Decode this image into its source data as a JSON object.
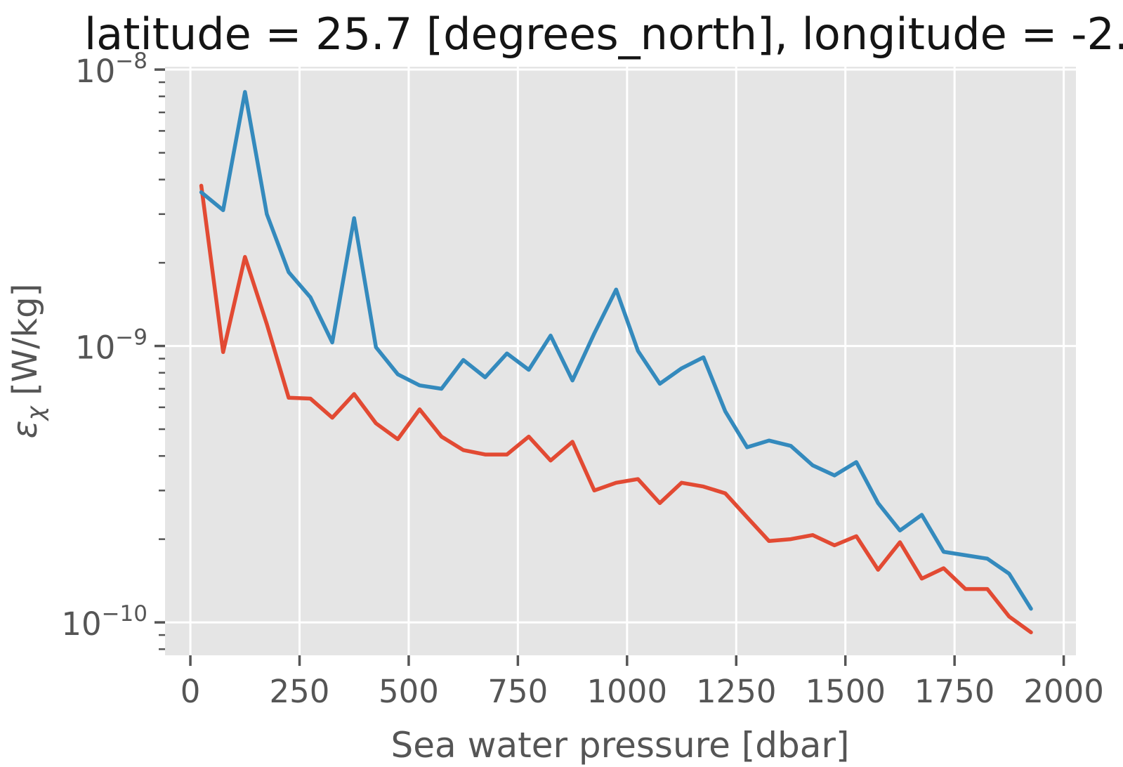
{
  "chart_data": {
    "type": "line",
    "title": "latitude = 25.7 [degrees_north], longitude = -2...",
    "xlabel": "Sea water pressure [dbar]",
    "ylabel": {
      "symbol": "ε",
      "subscript": "χ",
      "units": " [W/kg]"
    },
    "grid": true,
    "legend": "none",
    "plot_bg": "#e5e5e5",
    "grid_color": "#ffffff",
    "tick_color": "#555555",
    "label_color": "#555555",
    "title_color": "#141414",
    "xlim": [
      -58,
      2028
    ],
    "ylim": [
      7.6e-11,
      1.024e-08
    ],
    "x_ticks": [
      0,
      250,
      500,
      750,
      1000,
      1250,
      1500,
      1750,
      2000
    ],
    "y_ticks": [
      {
        "value": 1e-08,
        "base": "10",
        "exp": "−8"
      },
      {
        "value": 1e-09,
        "base": "10",
        "exp": "−9"
      },
      {
        "value": 1e-10,
        "base": "10",
        "exp": "−10"
      }
    ],
    "x": [
      25,
      75,
      125,
      175,
      225,
      275,
      325,
      375,
      425,
      475,
      525,
      575,
      625,
      675,
      725,
      775,
      825,
      875,
      925,
      975,
      1025,
      1075,
      1125,
      1175,
      1225,
      1275,
      1325,
      1375,
      1425,
      1475,
      1525,
      1575,
      1625,
      1675,
      1725,
      1775,
      1825,
      1875,
      1925
    ],
    "series": [
      {
        "name": "red-line",
        "color": "#E24A33",
        "values": [
          3.8e-09,
          9.5e-10,
          2.1e-09,
          1.2e-09,
          6.5e-10,
          6.45e-10,
          5.5e-10,
          6.7e-10,
          5.25e-10,
          4.6e-10,
          5.9e-10,
          4.7e-10,
          4.2e-10,
          4.05e-10,
          4.05e-10,
          4.7e-10,
          3.85e-10,
          4.5e-10,
          3e-10,
          3.2e-10,
          3.3e-10,
          2.7e-10,
          3.2e-10,
          3.1e-10,
          2.93e-10,
          2.4e-10,
          1.97e-10,
          2e-10,
          2.07e-10,
          1.9e-10,
          2.05e-10,
          1.55e-10,
          1.95e-10,
          1.44e-10,
          1.57e-10,
          1.32e-10,
          1.32e-10,
          1.05e-10,
          9.2e-11
        ]
      },
      {
        "name": "blue-line",
        "color": "#348ABD",
        "values": [
          3.6e-09,
          3.1e-09,
          8.3e-09,
          3e-09,
          1.85e-09,
          1.5e-09,
          1.03e-09,
          2.9e-09,
          9.9e-10,
          7.9e-10,
          7.2e-10,
          7e-10,
          8.9e-10,
          7.7e-10,
          9.4e-10,
          8.2e-10,
          1.09e-09,
          7.5e-10,
          1.11e-09,
          1.6e-09,
          9.6e-10,
          7.3e-10,
          8.3e-10,
          9.1e-10,
          5.8e-10,
          4.3e-10,
          4.55e-10,
          4.35e-10,
          3.7e-10,
          3.4e-10,
          3.8e-10,
          2.7e-10,
          2.15e-10,
          2.45e-10,
          1.8e-10,
          1.75e-10,
          1.7e-10,
          1.5e-10,
          1.12e-10
        ]
      }
    ]
  }
}
